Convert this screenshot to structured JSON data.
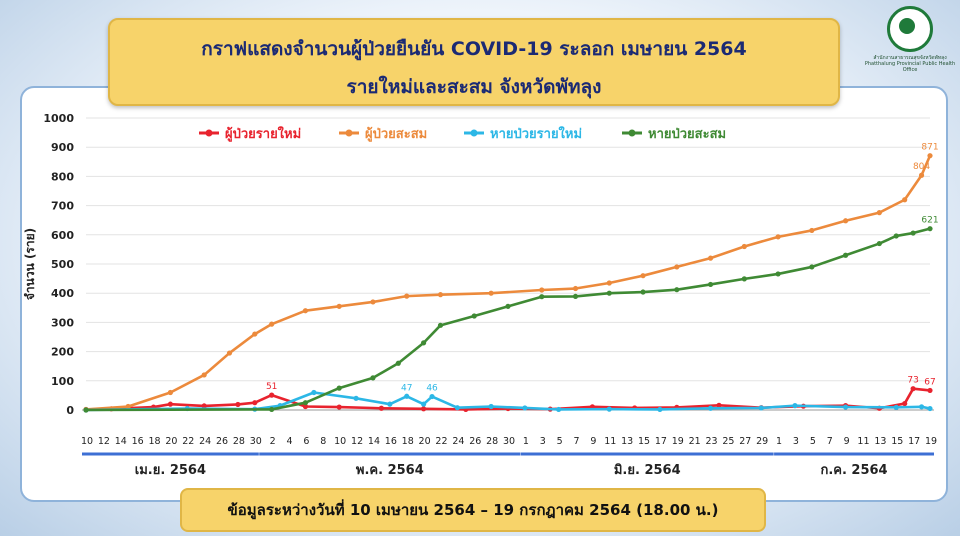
{
  "title_line1": "กราฟแสดงจำนวนผู้ป่วยยืนยัน COVID-19 ระลอก เมษายน 2564",
  "title_line2": "รายใหม่และสะสม จังหวัดพัทลุง",
  "org_name_th": "สำนักงานสาธารณสุขจังหวัดพัทลุง",
  "org_name_en": "Phatthalung Provincial Public Health Office",
  "footer": "ข้อมูลระหว่างวันที่ 10 เมษายน 2564 – 19 กรกฎาคม 2564 (18.00 น.)",
  "chart_data": {
    "type": "line",
    "ylabel": "จำนวน (ราย)",
    "ylim": [
      0,
      1000
    ],
    "yticks": [
      0,
      100,
      200,
      300,
      400,
      500,
      600,
      700,
      800,
      900,
      1000
    ],
    "x_tick_labels": [
      "10",
      "12",
      "14",
      "16",
      "18",
      "20",
      "22",
      "24",
      "26",
      "28",
      "30",
      "2",
      "4",
      "6",
      "8",
      "10",
      "12",
      "14",
      "16",
      "18",
      "20",
      "22",
      "24",
      "26",
      "28",
      "30",
      "1",
      "3",
      "5",
      "7",
      "9",
      "11",
      "13",
      "15",
      "17",
      "19",
      "21",
      "23",
      "25",
      "27",
      "29",
      "1",
      "3",
      "5",
      "7",
      "9",
      "11",
      "13",
      "15",
      "17",
      "19"
    ],
    "month_groups": [
      {
        "label": "เม.ย. 2564",
        "from": 0,
        "to": 20
      },
      {
        "label": "พ.ค. 2564",
        "from": 21,
        "to": 51
      },
      {
        "label": "มิ.ย. 2564",
        "from": 52,
        "to": 81
      },
      {
        "label": "ก.ค. 2564",
        "from": 82,
        "to": 100
      }
    ],
    "legend_position": "top",
    "grid": true,
    "series": [
      {
        "name": "ผู้ป่วยรายใหม่",
        "color": "#e8232e",
        "points": [
          [
            0,
            2
          ],
          [
            3,
            4
          ],
          [
            8,
            10
          ],
          [
            10,
            20
          ],
          [
            14,
            14
          ],
          [
            18,
            19
          ],
          [
            20,
            25
          ],
          [
            22,
            51
          ],
          [
            26,
            12
          ],
          [
            30,
            10
          ],
          [
            35,
            6
          ],
          [
            40,
            4
          ],
          [
            45,
            2
          ],
          [
            50,
            5
          ],
          [
            55,
            3
          ],
          [
            60,
            11
          ],
          [
            65,
            7
          ],
          [
            70,
            9
          ],
          [
            75,
            16
          ],
          [
            80,
            8
          ],
          [
            85,
            13
          ],
          [
            90,
            15
          ],
          [
            94,
            6
          ],
          [
            97,
            22
          ],
          [
            98,
            73
          ],
          [
            100,
            67
          ]
        ]
      },
      {
        "name": "ผู้ป่วยสะสม",
        "color": "#ec8a3c",
        "points": [
          [
            0,
            2
          ],
          [
            5,
            12
          ],
          [
            10,
            60
          ],
          [
            14,
            120
          ],
          [
            17,
            195
          ],
          [
            20,
            260
          ],
          [
            22,
            294
          ],
          [
            26,
            340
          ],
          [
            30,
            355
          ],
          [
            34,
            370
          ],
          [
            38,
            390
          ],
          [
            42,
            395
          ],
          [
            48,
            400
          ],
          [
            54,
            411
          ],
          [
            58,
            416
          ],
          [
            62,
            435
          ],
          [
            66,
            460
          ],
          [
            70,
            490
          ],
          [
            74,
            520
          ],
          [
            78,
            560
          ],
          [
            82,
            593
          ],
          [
            86,
            615
          ],
          [
            90,
            648
          ],
          [
            94,
            676
          ],
          [
            97,
            720
          ],
          [
            99,
            804
          ],
          [
            100,
            871
          ]
        ]
      },
      {
        "name": "หายป่วยรายใหม่",
        "color": "#2cb7e6",
        "points": [
          [
            0,
            0
          ],
          [
            12,
            5
          ],
          [
            20,
            3
          ],
          [
            23,
            15
          ],
          [
            27,
            60
          ],
          [
            32,
            40
          ],
          [
            36,
            20
          ],
          [
            38,
            47
          ],
          [
            40,
            20
          ],
          [
            41,
            46
          ],
          [
            44,
            8
          ],
          [
            48,
            12
          ],
          [
            52,
            7
          ],
          [
            56,
            2
          ],
          [
            62,
            3
          ],
          [
            68,
            2
          ],
          [
            74,
            6
          ],
          [
            80,
            7
          ],
          [
            84,
            15
          ],
          [
            90,
            10
          ],
          [
            96,
            9
          ],
          [
            99,
            11
          ],
          [
            100,
            5
          ]
        ]
      },
      {
        "name": "หายป่วยสะสม",
        "color": "#3f8a34",
        "points": [
          [
            0,
            0
          ],
          [
            22,
            2
          ],
          [
            26,
            25
          ],
          [
            30,
            75
          ],
          [
            34,
            110
          ],
          [
            37,
            160
          ],
          [
            40,
            230
          ],
          [
            42,
            290
          ],
          [
            46,
            322
          ],
          [
            50,
            355
          ],
          [
            54,
            388
          ],
          [
            58,
            389
          ],
          [
            62,
            400
          ],
          [
            66,
            404
          ],
          [
            70,
            412
          ],
          [
            74,
            430
          ],
          [
            78,
            449
          ],
          [
            82,
            466
          ],
          [
            86,
            490
          ],
          [
            90,
            530
          ],
          [
            94,
            570
          ],
          [
            96,
            596
          ],
          [
            98,
            606
          ],
          [
            100,
            621
          ]
        ]
      }
    ],
    "annotations": [
      {
        "series": "ผู้ป่วยสะสม",
        "x": 100,
        "text": "871"
      },
      {
        "series": "ผู้ป่วยสะสม",
        "x": 99,
        "text": "804"
      },
      {
        "series": "หายป่วยสะสม",
        "x": 100,
        "text": "621"
      },
      {
        "series": "ผู้ป่วยรายใหม่",
        "x": 98,
        "text": "73"
      },
      {
        "series": "ผู้ป่วยรายใหม่",
        "x": 100,
        "text": "67"
      },
      {
        "series": "ผู้ป่วยรายใหม่",
        "x": 22,
        "text": "51"
      },
      {
        "series": "หายป่วยรายใหม่",
        "x": 38,
        "text": "47"
      },
      {
        "series": "หายป่วยรายใหม่",
        "x": 41,
        "text": "46"
      }
    ]
  }
}
